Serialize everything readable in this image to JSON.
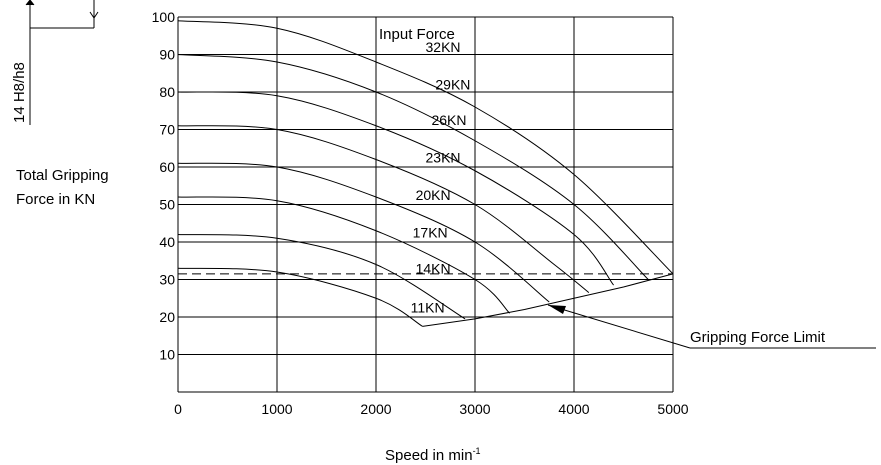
{
  "chart_data": {
    "type": "line",
    "title": "",
    "annotation_top": "Input Force",
    "ylabel_lines": [
      "Total Gripping",
      "Force in KN"
    ],
    "xlabel": "Speed in min",
    "xlabel_superscript": "-1",
    "xlim": [
      0,
      5000
    ],
    "ylim": [
      0,
      100
    ],
    "x_ticks": [
      "0",
      "1000",
      "2000",
      "3000",
      "4000",
      "5000"
    ],
    "y_ticks": [
      "10",
      "20",
      "30",
      "40",
      "50",
      "60",
      "70",
      "80",
      "90",
      "100"
    ],
    "grid": true,
    "limit_line": {
      "value": 31.5,
      "style": "dashed"
    },
    "limit_label": "Gripping Force Limit",
    "limit_curve": [
      [
        2470,
        17.5
      ],
      [
        3000,
        19.5
      ],
      [
        3500,
        22
      ],
      [
        4000,
        25
      ],
      [
        4500,
        28
      ],
      [
        5000,
        31.5
      ]
    ],
    "series": [
      {
        "name": "32KN",
        "points": [
          [
            0,
            99
          ],
          [
            1000,
            97
          ],
          [
            2000,
            88
          ],
          [
            3000,
            76
          ],
          [
            4000,
            58
          ],
          [
            5000,
            31.5
          ]
        ]
      },
      {
        "name": "29KN",
        "points": [
          [
            0,
            90
          ],
          [
            1000,
            88
          ],
          [
            2000,
            80
          ],
          [
            3000,
            67
          ],
          [
            4000,
            50
          ],
          [
            4750,
            30
          ]
        ]
      },
      {
        "name": "26KN",
        "points": [
          [
            0,
            80
          ],
          [
            1000,
            79
          ],
          [
            2000,
            71
          ],
          [
            3000,
            59
          ],
          [
            4000,
            42
          ],
          [
            4400,
            28.5
          ]
        ]
      },
      {
        "name": "23KN",
        "points": [
          [
            0,
            71
          ],
          [
            1000,
            70
          ],
          [
            2000,
            62
          ],
          [
            3000,
            50
          ],
          [
            3800,
            34
          ],
          [
            4150,
            26.5
          ]
        ]
      },
      {
        "name": "20KN",
        "points": [
          [
            0,
            61
          ],
          [
            1000,
            60
          ],
          [
            2000,
            52
          ],
          [
            3000,
            40
          ],
          [
            3750,
            24
          ]
        ]
      },
      {
        "name": "17KN",
        "points": [
          [
            0,
            52
          ],
          [
            1000,
            51
          ],
          [
            2000,
            43
          ],
          [
            3000,
            30
          ],
          [
            3350,
            21
          ]
        ]
      },
      {
        "name": "14KN",
        "points": [
          [
            0,
            42
          ],
          [
            1000,
            41
          ],
          [
            2000,
            34
          ],
          [
            2900,
            19.5
          ]
        ]
      },
      {
        "name": "11KN",
        "points": [
          [
            0,
            33
          ],
          [
            1000,
            32
          ],
          [
            2000,
            25
          ],
          [
            2470,
            17.5
          ]
        ]
      }
    ]
  },
  "fragment": {
    "dimension_label": "14 H8/h8"
  }
}
